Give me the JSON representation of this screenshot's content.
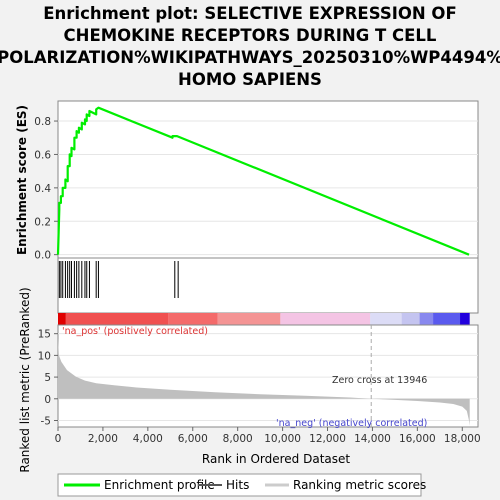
{
  "chart_data": {
    "type": "line",
    "title_lines": [
      "Enrichment plot: SELECTIVE EXPRESSION OF",
      "CHEMOKINE RECEPTORS DURING T CELL",
      "POLARIZATION%WIKIPATHWAYS_20250310%WP4494%",
      "HOMO SAPIENS"
    ],
    "top_panel": {
      "ylabel": "Enrichment score (ES)",
      "ylim": [
        -0.02,
        0.92
      ],
      "yticks": [
        0.0,
        0.2,
        0.4,
        0.6,
        0.8
      ],
      "ytick_labels": [
        "0.0",
        "0.2",
        "0.4",
        "0.6",
        "0.8"
      ],
      "series": [
        {
          "name": "Enrichment profile",
          "color": "#00ee00",
          "x": [
            0,
            60,
            60,
            130,
            130,
            210,
            210,
            330,
            330,
            430,
            430,
            520,
            520,
            600,
            600,
            730,
            730,
            830,
            830,
            930,
            930,
            1060,
            1060,
            1200,
            1200,
            1280,
            1280,
            1400,
            1400,
            1700,
            1700,
            1800,
            1800,
            5100,
            5100,
            5300,
            5300,
            18300
          ],
          "y": [
            0.0,
            0.27,
            0.31,
            0.31,
            0.35,
            0.35,
            0.4,
            0.4,
            0.45,
            0.44,
            0.53,
            0.53,
            0.6,
            0.59,
            0.64,
            0.63,
            0.7,
            0.7,
            0.74,
            0.73,
            0.76,
            0.75,
            0.79,
            0.78,
            0.81,
            0.8,
            0.84,
            0.83,
            0.86,
            0.84,
            0.87,
            0.88,
            0.88,
            0.7,
            0.71,
            0.71,
            0.71,
            0.0
          ]
        }
      ]
    },
    "hits": [
      60,
      130,
      210,
      330,
      430,
      520,
      600,
      730,
      830,
      930,
      1060,
      1200,
      1280,
      1400,
      1700,
      1800,
      5200,
      5350
    ],
    "ranked_list_panel": {
      "ylabel": "Ranked list metric (PreRanked)",
      "ylim": [
        -6.5,
        17
      ],
      "yticks": [
        -5,
        0,
        5,
        10,
        15
      ],
      "ytick_labels": [
        "-5",
        "0",
        "5",
        "10",
        "15"
      ],
      "zero_cross_label": "Zero cross at 13946",
      "zero_cross": 13946,
      "pos_label": "'na_pos' (positively correlated)",
      "neg_label": "'na_neg' (negatively correlated)",
      "metric_profile": {
        "x": [
          0,
          40,
          150,
          400,
          800,
          1200,
          1700,
          2500,
          3500,
          5000,
          7000,
          9000,
          11000,
          13000,
          13946,
          15000,
          16000,
          17000,
          17600,
          18000,
          18200,
          18300,
          18330
        ],
        "y": [
          14,
          10,
          8.5,
          6.6,
          5.1,
          4.2,
          3.6,
          3.1,
          2.6,
          2.1,
          1.5,
          1.05,
          0.7,
          0.3,
          0.0,
          -0.25,
          -0.5,
          -0.85,
          -1.2,
          -1.8,
          -2.8,
          -5.0,
          -6.2
        ]
      }
    },
    "xaxis": {
      "label": "Rank in Ordered Dataset",
      "xlim": [
        0,
        18700
      ],
      "ticks": [
        0,
        2000,
        4000,
        6000,
        8000,
        10000,
        12000,
        14000,
        16000,
        18000
      ],
      "tick_labels": [
        "0",
        "2,000",
        "4,000",
        "6,000",
        "8,000",
        "10,000",
        "12,000",
        "14,000",
        "16,000",
        "18,000"
      ]
    },
    "color_bar": [
      {
        "from": 0,
        "to": 350,
        "color": "#e00000"
      },
      {
        "from": 350,
        "to": 4900,
        "color": "#f05050"
      },
      {
        "from": 4900,
        "to": 7100,
        "color": "#f46a6a"
      },
      {
        "from": 7100,
        "to": 9900,
        "color": "#f49494"
      },
      {
        "from": 9900,
        "to": 13900,
        "color": "#f4c4e4"
      },
      {
        "from": 13900,
        "to": 15300,
        "color": "#dcdcf6"
      },
      {
        "from": 15300,
        "to": 16100,
        "color": "#c4c4f0"
      },
      {
        "from": 16100,
        "to": 16700,
        "color": "#8888ee"
      },
      {
        "from": 16700,
        "to": 17900,
        "color": "#5a5aee"
      },
      {
        "from": 17900,
        "to": 18330,
        "color": "#2200dd"
      }
    ],
    "legend": {
      "placement": "bottom",
      "items": [
        {
          "label": "Enrichment profile",
          "color": "#00ee00",
          "kind": "line"
        },
        {
          "label": "Hits",
          "color": "#555555",
          "kind": "tick"
        },
        {
          "label": "Ranking metric scores",
          "color": "#cccccc",
          "kind": "band"
        }
      ]
    },
    "colors": {
      "enrichment": "#00ee00",
      "hits": "#000000",
      "metric_fill": "#bfbfbf",
      "pos_label": "#dd3333",
      "neg_label": "#4444cc",
      "zero_cross_line": "#aaaaaa"
    }
  }
}
